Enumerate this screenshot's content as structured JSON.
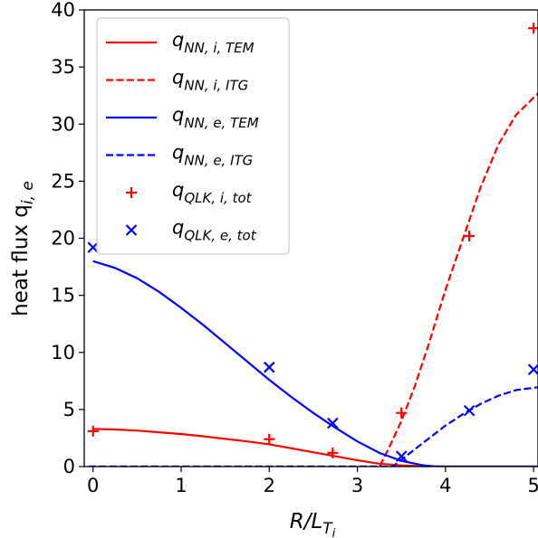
{
  "chart_data": {
    "type": "line",
    "xlabel_main": "R/L",
    "xlabel_sub": "T",
    "xlabel_subsub": "i",
    "ylabel_main": "heat flux q",
    "ylabel_sub": "i, e",
    "xlim": [
      -0.1,
      5.05
    ],
    "ylim": [
      0,
      40
    ],
    "xticks": [
      0,
      1,
      2,
      3,
      4,
      5
    ],
    "yticks": [
      0,
      5,
      10,
      15,
      20,
      25,
      30,
      35,
      40
    ],
    "legend_position": "top-left",
    "series": [
      {
        "name_main": "q",
        "name_sub": "NN, i, TEM",
        "kind": "line",
        "style": "solid",
        "color": "#ff0000",
        "x": [
          0,
          0.25,
          0.5,
          0.75,
          1.0,
          1.25,
          1.5,
          1.75,
          2.0,
          2.25,
          2.5,
          2.75,
          3.0,
          3.25,
          3.5,
          3.75,
          4.0,
          4.5,
          5.05
        ],
        "y": [
          3.3,
          3.25,
          3.15,
          3.0,
          2.85,
          2.65,
          2.42,
          2.2,
          1.95,
          1.6,
          1.25,
          0.9,
          0.55,
          0.25,
          0.1,
          0.03,
          0.0,
          0.0,
          0.0
        ]
      },
      {
        "name_main": "q",
        "name_sub": "NN, i, ITG",
        "kind": "line",
        "style": "dashed",
        "color": "#ff0000",
        "x": [
          -0.05,
          3.25,
          3.35,
          3.5,
          3.65,
          3.8,
          4.0,
          4.2,
          4.4,
          4.6,
          4.8,
          5.05
        ],
        "y": [
          0.0,
          0.0,
          1.5,
          4.0,
          7.0,
          10.5,
          15.5,
          20.0,
          24.5,
          28.2,
          30.8,
          32.7
        ]
      },
      {
        "name_main": "q",
        "name_sub": "NN, e, TEM",
        "kind": "line",
        "style": "solid",
        "color": "#0000ff",
        "x": [
          0,
          0.25,
          0.5,
          0.75,
          1.0,
          1.25,
          1.5,
          1.75,
          2.0,
          2.25,
          2.5,
          2.75,
          3.0,
          3.25,
          3.5,
          3.75,
          3.9,
          4.2,
          5.05
        ],
        "y": [
          18.0,
          17.4,
          16.5,
          15.3,
          13.9,
          12.4,
          10.8,
          9.2,
          7.6,
          6.1,
          4.7,
          3.4,
          2.2,
          1.2,
          0.5,
          0.1,
          0.0,
          0.0,
          0.0
        ]
      },
      {
        "name_main": "q",
        "name_sub": "NN, e, ITG",
        "kind": "line",
        "style": "dashed",
        "color": "#0000ff",
        "x": [
          -0.05,
          3.4,
          3.6,
          3.8,
          4.0,
          4.2,
          4.4,
          4.6,
          4.8,
          5.05
        ],
        "y": [
          0.0,
          0.0,
          1.2,
          2.4,
          3.6,
          4.6,
          5.5,
          6.2,
          6.7,
          6.95
        ]
      },
      {
        "name_main": "q",
        "name_sub": "QLK, i, tot",
        "kind": "scatter",
        "marker": "plus",
        "color": "#ff0000",
        "x": [
          0.0,
          2.0,
          2.72,
          3.5,
          4.27,
          5.0
        ],
        "y": [
          3.1,
          2.4,
          1.2,
          4.7,
          20.2,
          38.4
        ]
      },
      {
        "name_main": "q",
        "name_sub": "QLK, e, tot",
        "kind": "scatter",
        "marker": "x",
        "color": "#0000ff",
        "x": [
          0.0,
          2.0,
          2.72,
          3.5,
          4.27,
          5.0
        ],
        "y": [
          19.2,
          8.7,
          3.8,
          0.9,
          4.9,
          8.5
        ]
      }
    ]
  }
}
